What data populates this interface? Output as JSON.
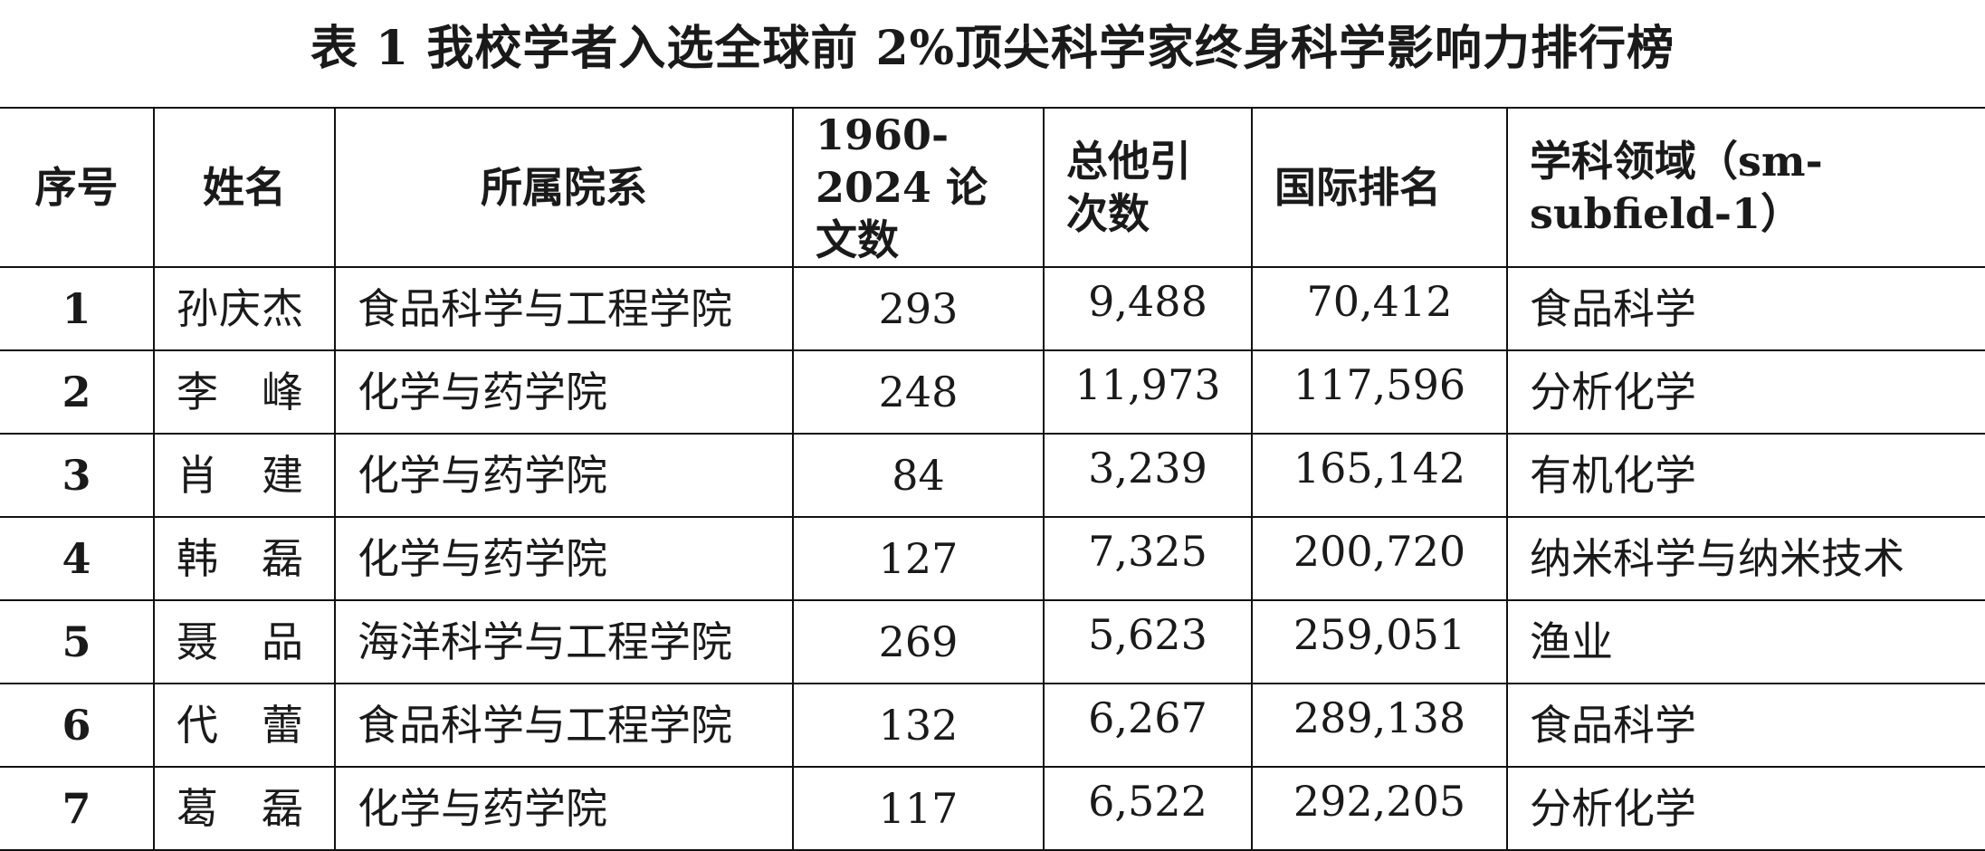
{
  "document": {
    "title": "表 1  我校学者入选全球前 2%顶尖科学家终身科学影响力排行榜"
  },
  "table": {
    "headers": [
      "序号",
      "姓名",
      "所属院系",
      "1960-2024 论文数",
      "总他引 次数",
      "国际排名",
      "学科领域（sm-subfield-1）"
    ],
    "rows": [
      {
        "no": "1",
        "name": "孙庆杰",
        "department": "食品科学与工程学院",
        "papers": "293",
        "citations": "9,488",
        "rank": "70,412",
        "field": "食品科学"
      },
      {
        "no": "2",
        "name": "李　峰",
        "department": "化学与药学院",
        "papers": "248",
        "citations": "11,973",
        "rank": "117,596",
        "field": "分析化学"
      },
      {
        "no": "3",
        "name": "肖　建",
        "department": "化学与药学院",
        "papers": "84",
        "citations": "3,239",
        "rank": "165,142",
        "field": "有机化学"
      },
      {
        "no": "4",
        "name": "韩　磊",
        "department": "化学与药学院",
        "papers": "127",
        "citations": "7,325",
        "rank": "200,720",
        "field": "纳米科学与纳米技术"
      },
      {
        "no": "5",
        "name": "聂　品",
        "department": "海洋科学与工程学院",
        "papers": "269",
        "citations": "5,623",
        "rank": "259,051",
        "field": "渔业"
      },
      {
        "no": "6",
        "name": "代　蕾",
        "department": "食品科学与工程学院",
        "papers": "132",
        "citations": "6,267",
        "rank": "289,138",
        "field": "食品科学"
      },
      {
        "no": "7",
        "name": "葛　磊",
        "department": "化学与药学院",
        "papers": "117",
        "citations": "6,522",
        "rank": "292,205",
        "field": "分析化学"
      }
    ]
  }
}
